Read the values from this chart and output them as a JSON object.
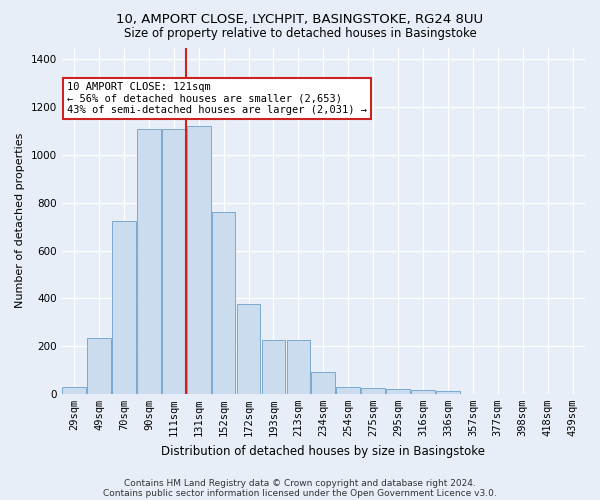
{
  "title": "10, AMPORT CLOSE, LYCHPIT, BASINGSTOKE, RG24 8UU",
  "subtitle": "Size of property relative to detached houses in Basingstoke",
  "xlabel": "Distribution of detached houses by size in Basingstoke",
  "ylabel": "Number of detached properties",
  "footnote1": "Contains HM Land Registry data © Crown copyright and database right 2024.",
  "footnote2": "Contains public sector information licensed under the Open Government Licence v3.0.",
  "annotation_line1": "10 AMPORT CLOSE: 121sqm",
  "annotation_line2": "← 56% of detached houses are smaller (2,653)",
  "annotation_line3": "43% of semi-detached houses are larger (2,031) →",
  "bar_color": "#ccdcef",
  "bar_edge_color": "#7aaad0",
  "annotation_box_facecolor": "#ffffff",
  "annotation_box_edgecolor": "#cc2222",
  "vline_color": "#cc2222",
  "categories": [
    "29sqm",
    "49sqm",
    "70sqm",
    "90sqm",
    "111sqm",
    "131sqm",
    "152sqm",
    "172sqm",
    "193sqm",
    "213sqm",
    "234sqm",
    "254sqm",
    "275sqm",
    "295sqm",
    "316sqm",
    "336sqm",
    "357sqm",
    "377sqm",
    "398sqm",
    "418sqm",
    "439sqm"
  ],
  "values": [
    30,
    235,
    725,
    1110,
    1110,
    1120,
    760,
    375,
    225,
    225,
    90,
    30,
    25,
    20,
    15,
    10,
    0,
    0,
    0,
    0,
    0
  ],
  "vline_x_index": 4.48,
  "ylim": [
    0,
    1450
  ],
  "yticks": [
    0,
    200,
    400,
    600,
    800,
    1000,
    1200,
    1400
  ],
  "bg_color": "#e8eef8",
  "plot_bg_color": "#e8eef8",
  "title_fontsize": 9.5,
  "subtitle_fontsize": 8.5,
  "ylabel_fontsize": 8,
  "xlabel_fontsize": 8.5,
  "tick_fontsize": 7.5,
  "annot_fontsize": 7.5,
  "footer_fontsize": 6.5
}
